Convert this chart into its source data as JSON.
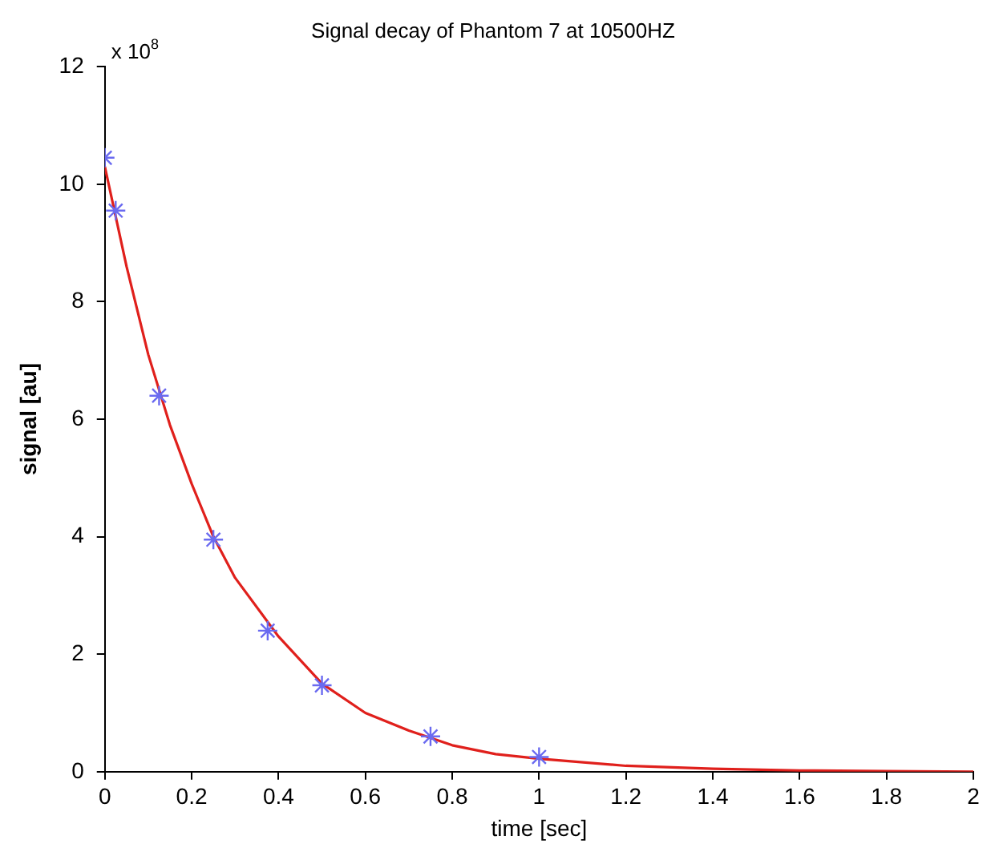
{
  "chart_data": {
    "type": "scatter",
    "title": "Signal decay of Phantom 7 at 10500HZ",
    "xlabel": "time [sec]",
    "ylabel": "signal [au]",
    "annotations": [
      "x 10$^{8}$"
    ],
    "xlim": [
      0,
      2
    ],
    "xticks": [
      0,
      0.2,
      0.4,
      0.6,
      0.8,
      1,
      1.2,
      1.4,
      1.6,
      1.8,
      2
    ],
    "ylim": [
      0,
      12
    ],
    "yticks": [
      0,
      2,
      4,
      6,
      8,
      10,
      12
    ],
    "grid": false,
    "legend": false,
    "series": [
      {
        "type": "scatter",
        "color": "#6a6af0",
        "marker": "cross",
        "x": [
          0,
          0.025,
          0.125,
          0.25,
          0.375,
          0.5,
          0.75,
          1
        ],
        "values": [
          10.45,
          9.55,
          6.4,
          3.95,
          2.4,
          1.47,
          0.6,
          0.25
        ]
      },
      {
        "type": "line",
        "color": "#e0201c",
        "marker": "none",
        "line_style": "solid",
        "x": [
          0,
          0.05,
          0.1,
          0.15,
          0.2,
          0.25,
          0.3,
          0.4,
          0.5,
          0.6,
          0.7,
          0.8,
          0.9,
          1,
          1.2,
          1.4,
          1.6,
          1.8,
          2
        ],
        "values": [
          10.3,
          8.6,
          7.1,
          5.9,
          4.9,
          4.0,
          3.3,
          2.3,
          1.5,
          1.0,
          0.7,
          0.45,
          0.3,
          0.22,
          0.1,
          0.05,
          0.02,
          0.01,
          0
        ]
      }
    ]
  }
}
